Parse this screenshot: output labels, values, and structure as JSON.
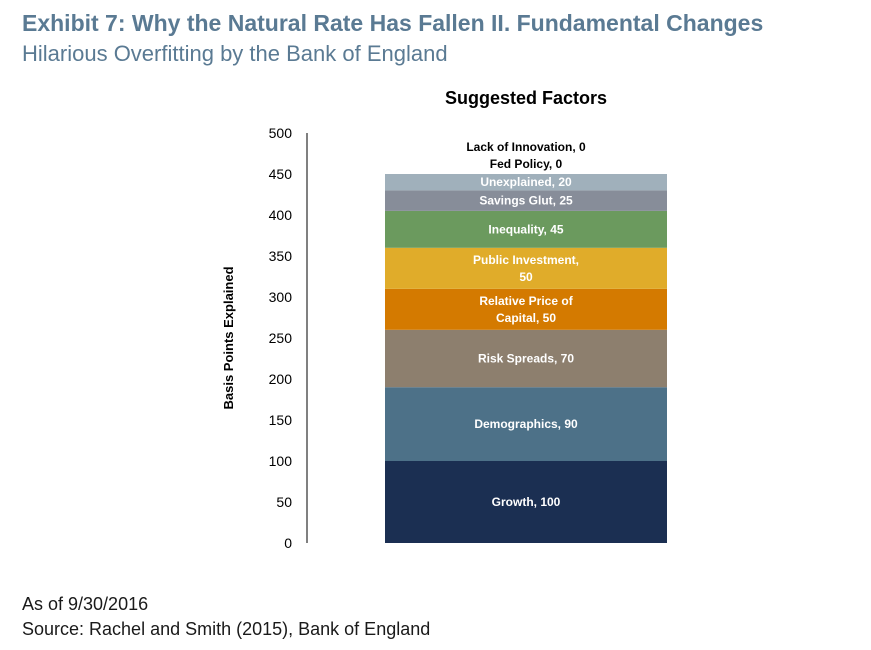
{
  "header": {
    "title": "Exhibit 7: Why the Natural Rate Has Fallen II. Fundamental Changes",
    "subtitle": "Hilarious Overfitting by the Bank of England"
  },
  "footer": {
    "as_of": "As of 9/30/2016",
    "source": "Source:  Rachel and Smith (2015), Bank of England"
  },
  "chart_data": {
    "type": "bar",
    "stacked": true,
    "title": "Suggested Factors",
    "xlabel": "",
    "ylabel": "Basis Points Explained",
    "ylim": [
      0,
      500
    ],
    "yticks": [
      0,
      50,
      100,
      150,
      200,
      250,
      300,
      350,
      400,
      450,
      500
    ],
    "series": [
      {
        "name": "Growth",
        "value": 100,
        "label_lines": [
          "Growth, 100"
        ],
        "color": "#1b2f52",
        "text_color": "#ffffff"
      },
      {
        "name": "Demographics",
        "value": 90,
        "label_lines": [
          "Demographics, 90"
        ],
        "color": "#4d7188",
        "text_color": "#ffffff"
      },
      {
        "name": "Risk Spreads",
        "value": 70,
        "label_lines": [
          "Risk Spreads, 70"
        ],
        "color": "#8d7f6e",
        "text_color": "#ffffff"
      },
      {
        "name": "Relative Price of Capital",
        "value": 50,
        "label_lines": [
          "Relative Price of",
          "Capital, 50"
        ],
        "color": "#d47a00",
        "text_color": "#ffffff"
      },
      {
        "name": "Public Investment",
        "value": 50,
        "label_lines": [
          "Public Investment,",
          "50"
        ],
        "color": "#e0ac2a",
        "text_color": "#ffffff"
      },
      {
        "name": "Inequality",
        "value": 45,
        "label_lines": [
          "Inequality, 45"
        ],
        "color": "#6b9a5e",
        "text_color": "#ffffff"
      },
      {
        "name": "Savings Glut",
        "value": 25,
        "label_lines": [
          "Savings Glut, 25"
        ],
        "color": "#878d99",
        "text_color": "#ffffff"
      },
      {
        "name": "Unexplained",
        "value": 20,
        "label_lines": [
          "Unexplained, 20"
        ],
        "color": "#a0b0bb",
        "text_color": "#ffffff"
      },
      {
        "name": "Fed Policy",
        "value": 0,
        "label_lines": [
          "Fed Policy, 0"
        ],
        "color": "#ffffff",
        "text_color": "#000000"
      },
      {
        "name": "Lack of Innovation",
        "value": 0,
        "label_lines": [
          "Lack of Innovation, 0"
        ],
        "color": "#ffffff",
        "text_color": "#000000"
      }
    ]
  }
}
